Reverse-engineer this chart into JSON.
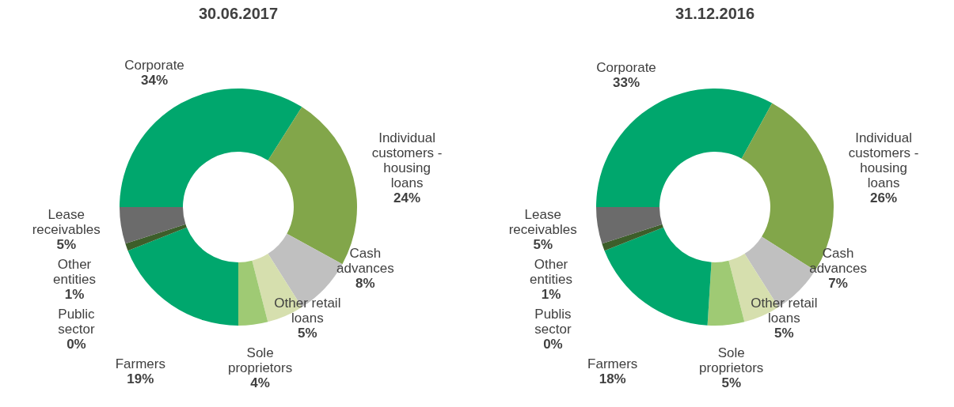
{
  "chart_data": [
    {
      "type": "donut",
      "title": "30.06.2017",
      "categories": [
        "Corporate",
        "Individual customers - housing loans",
        "Cash advances",
        "Other retail loans",
        "Sole proprietors",
        "Farmers",
        "Public sector",
        "Other entities",
        "Lease receivables"
      ],
      "values": [
        34,
        24,
        8,
        5,
        4,
        19,
        0,
        1,
        5
      ],
      "value_labels": [
        "34%",
        "24%",
        "8%",
        "5%",
        "4%",
        "19%",
        "0%",
        "1%",
        "5%"
      ],
      "colors": [
        "#00a76d",
        "#82a64a",
        "#c0c0c0",
        "#d6dfae",
        "#9fca74",
        "#00a76d",
        "#1f5a3a",
        "#3d5e2a",
        "#6b6b6b"
      ]
    },
    {
      "type": "donut",
      "title": "31.12.2016",
      "categories": [
        "Corporate",
        "Individual customers - housing loans",
        "Cash advances",
        "Other retail loans",
        "Sole proprietors",
        "Farmers",
        "Publis sector",
        "Other entities",
        "Lease receivables"
      ],
      "values": [
        33,
        26,
        7,
        5,
        5,
        18,
        0,
        1,
        5
      ],
      "value_labels": [
        "33%",
        "26%",
        "7%",
        "5%",
        "5%",
        "18%",
        "0%",
        "1%",
        "5%"
      ],
      "colors": [
        "#00a76d",
        "#82a64a",
        "#c0c0c0",
        "#d6dfae",
        "#9fca74",
        "#00a76d",
        "#1f5a3a",
        "#3d5e2a",
        "#6b6b6b"
      ]
    }
  ]
}
